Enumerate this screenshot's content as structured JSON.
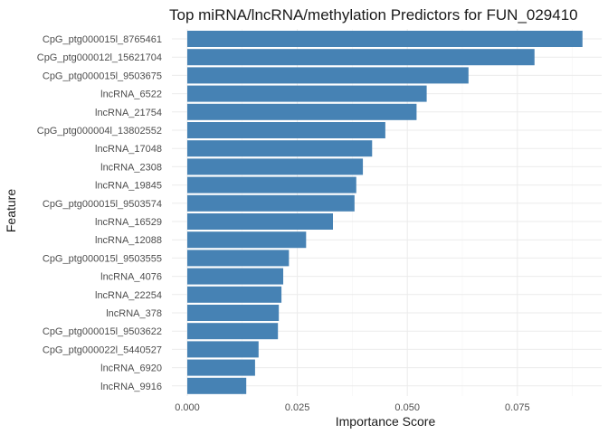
{
  "chart_data": {
    "type": "bar",
    "orientation": "horizontal",
    "title": "Top miRNA/lncRNA/methylation Predictors for FUN_029410",
    "xlabel": "Importance Score",
    "ylabel": "Feature",
    "xlim": [
      0,
      0.09
    ],
    "xticks": [
      0,
      0.025,
      0.05,
      0.075
    ],
    "xtick_labels": [
      "0.000",
      "0.025",
      "0.050",
      "0.075"
    ],
    "bar_color": "#4682B4",
    "grid": true,
    "categories": [
      "CpG_ptg000015l_8765461",
      "CpG_ptg000012l_15621704",
      "CpG_ptg000015l_9503675",
      "lncRNA_6522",
      "lncRNA_21754",
      "CpG_ptg000004l_13802552",
      "lncRNA_17048",
      "lncRNA_2308",
      "lncRNA_19845",
      "CpG_ptg000015l_9503574",
      "lncRNA_16529",
      "lncRNA_12088",
      "CpG_ptg000015l_9503555",
      "lncRNA_4076",
      "lncRNA_22254",
      "lncRNA_378",
      "CpG_ptg000015l_9503622",
      "CpG_ptg000022l_5440527",
      "lncRNA_6920",
      "lncRNA_9916"
    ],
    "values": [
      0.0898,
      0.0789,
      0.0639,
      0.0544,
      0.0521,
      0.045,
      0.042,
      0.0399,
      0.0384,
      0.038,
      0.0331,
      0.027,
      0.0231,
      0.0218,
      0.0214,
      0.0208,
      0.0206,
      0.0162,
      0.0154,
      0.0134
    ]
  }
}
